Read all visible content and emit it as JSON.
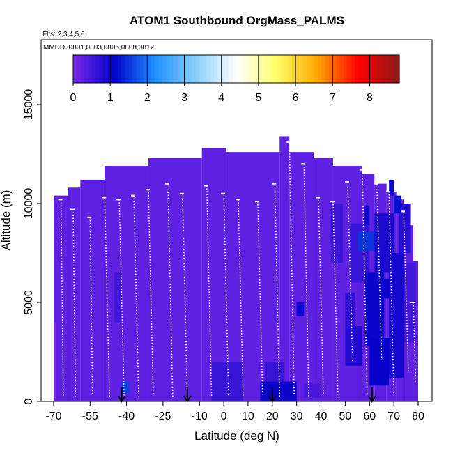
{
  "chart_data": {
    "type": "heatmap",
    "title": "ATOM1 Southbound OrgMass_PALMS",
    "subtitle_flights": "Flts: 2,3,4,5,6",
    "subtitle_dates": "MMDD: 0801,0803,0806,0808,0812",
    "xlabel": "Latitude (deg N)",
    "ylabel": "Altitude (m)",
    "xlim": [
      -70,
      80
    ],
    "ylim": [
      0,
      17500
    ],
    "x_ticks": [
      -70,
      -55,
      -40,
      -25,
      -10,
      0,
      10,
      20,
      30,
      40,
      50,
      60,
      70,
      80
    ],
    "x_tick_labels": [
      "-70",
      "-55",
      "-40",
      "-25",
      "-10",
      "0",
      "10",
      "20",
      "30",
      "40",
      "50",
      "60",
      "70",
      "80"
    ],
    "y_ticks": [
      0,
      5000,
      10000,
      15000
    ],
    "y_tick_labels": [
      "0",
      "5000",
      "10000",
      "15000"
    ],
    "colorbar": {
      "range": [
        0,
        8.8
      ],
      "ticks": [
        0,
        1,
        2,
        3,
        4,
        5,
        6,
        7,
        8
      ],
      "tick_labels": [
        "0",
        "1",
        "2",
        "3",
        "4",
        "5",
        "6",
        "7",
        "8"
      ],
      "colors": [
        "#7B2BE8",
        "#0000C8",
        "#1E90FF",
        "#87CEFA",
        "#FFFFFF",
        "#FFFF66",
        "#FFA500",
        "#FF0000",
        "#8B1A1A"
      ]
    },
    "dominant_value": 0.25,
    "arrow_latitudes": [
      -42,
      -15,
      20,
      61
    ],
    "top_boundary": [
      {
        "lat_min": -70,
        "lat_max": -64,
        "top": 10400
      },
      {
        "lat_min": -64,
        "lat_max": -59,
        "top": 10800
      },
      {
        "lat_min": -59,
        "lat_max": -49,
        "top": 11200
      },
      {
        "lat_min": -49,
        "lat_max": -31,
        "top": 11900
      },
      {
        "lat_min": -31,
        "lat_max": -9,
        "top": 12300
      },
      {
        "lat_min": -9,
        "lat_max": 1,
        "top": 12800
      },
      {
        "lat_min": 1,
        "lat_max": 23,
        "top": 12600
      },
      {
        "lat_min": 23,
        "lat_max": 27,
        "top": 13400
      },
      {
        "lat_min": 27,
        "lat_max": 37,
        "top": 12600
      },
      {
        "lat_min": 37,
        "lat_max": 45,
        "top": 12300
      },
      {
        "lat_min": 45,
        "lat_max": 57,
        "top": 11900
      },
      {
        "lat_min": 57,
        "lat_max": 62,
        "top": 11500
      },
      {
        "lat_min": 62,
        "lat_max": 67,
        "top": 11000
      },
      {
        "lat_min": 67,
        "lat_max": 71,
        "top": 10600
      },
      {
        "lat_min": 71,
        "lat_max": 74,
        "top": 10200
      },
      {
        "lat_min": 74,
        "lat_max": 78,
        "top": 8900
      },
      {
        "lat_min": 78,
        "lat_max": 80,
        "top": 7100
      }
    ],
    "cells": [
      {
        "lat_min": -70,
        "lat_max": -69,
        "alt_min": 0,
        "alt_max": 4000,
        "value": 0.0
      },
      {
        "lat_min": -45,
        "lat_max": -42,
        "alt_min": 4000,
        "alt_max": 6500,
        "value": 0.5
      },
      {
        "lat_min": -42,
        "lat_max": -39,
        "alt_min": 400,
        "alt_max": 1000,
        "value": 1.6
      },
      {
        "lat_min": -5,
        "lat_max": 8,
        "alt_min": 0,
        "alt_max": 2000,
        "value": 0.6
      },
      {
        "lat_min": 15,
        "lat_max": 30,
        "alt_min": 0,
        "alt_max": 1000,
        "value": 1.0
      },
      {
        "lat_min": 17,
        "lat_max": 25,
        "alt_min": 1000,
        "alt_max": 2000,
        "value": 0.6
      },
      {
        "lat_min": 30,
        "lat_max": 33,
        "alt_min": 4300,
        "alt_max": 5000,
        "value": 1.0
      },
      {
        "lat_min": 44,
        "lat_max": 49,
        "alt_min": 7000,
        "alt_max": 10000,
        "value": 0.55
      },
      {
        "lat_min": 50,
        "lat_max": 57,
        "alt_min": 1800,
        "alt_max": 3800,
        "value": 0.8
      },
      {
        "lat_min": 50,
        "lat_max": 54,
        "alt_min": 3800,
        "alt_max": 5500,
        "value": 0.7
      },
      {
        "lat_min": 52,
        "lat_max": 60,
        "alt_min": 6000,
        "alt_max": 9000,
        "value": 0.6
      },
      {
        "lat_min": 55,
        "lat_max": 62,
        "alt_min": 7600,
        "alt_max": 8600,
        "value": 1.5
      },
      {
        "lat_min": 62,
        "lat_max": 68,
        "alt_min": 5200,
        "alt_max": 6200,
        "value": 1.0
      },
      {
        "lat_min": 58,
        "lat_max": 66,
        "alt_min": 2800,
        "alt_max": 6500,
        "value": 1.0
      },
      {
        "lat_min": 60,
        "lat_max": 68,
        "alt_min": 800,
        "alt_max": 3200,
        "value": 1.05
      },
      {
        "lat_min": 62,
        "lat_max": 70,
        "alt_min": 6500,
        "alt_max": 9500,
        "value": 0.85
      },
      {
        "lat_min": 68,
        "lat_max": 74,
        "alt_min": 1200,
        "alt_max": 7500,
        "value": 0.9
      },
      {
        "lat_min": 72,
        "lat_max": 77,
        "alt_min": 7500,
        "alt_max": 10000,
        "value": 0.75
      },
      {
        "lat_min": 70,
        "lat_max": 73,
        "alt_min": 9500,
        "alt_max": 10400,
        "value": 1.2
      },
      {
        "lat_min": 68,
        "lat_max": 70,
        "alt_min": 10400,
        "alt_max": 11200,
        "value": 1.0
      },
      {
        "lat_min": 74,
        "lat_max": 79,
        "alt_min": 3000,
        "alt_max": 7000,
        "value": 0.5
      },
      {
        "lat_min": 58,
        "lat_max": 60,
        "alt_min": 8900,
        "alt_max": 9900,
        "value": 1.0
      },
      {
        "lat_min": 33,
        "lat_max": 40,
        "alt_min": 200,
        "alt_max": 900,
        "value": 0.45
      }
    ],
    "profiles": [
      {
        "lat_start": -67,
        "lat_end": -66,
        "alt_start": 10200,
        "alt_end": 200
      },
      {
        "lat_start": -62,
        "lat_end": -61,
        "alt_start": 9700,
        "alt_end": 200
      },
      {
        "lat_start": -55,
        "lat_end": -54,
        "alt_start": 9300,
        "alt_end": 300
      },
      {
        "lat_start": -49,
        "lat_end": -47,
        "alt_start": 10300,
        "alt_end": 200
      },
      {
        "lat_start": -43,
        "lat_end": -41,
        "alt_start": 10200,
        "alt_end": 300
      },
      {
        "lat_start": -37,
        "lat_end": -35,
        "alt_start": 10400,
        "alt_end": 200
      },
      {
        "lat_start": -31,
        "lat_end": -29,
        "alt_start": 10700,
        "alt_end": 300
      },
      {
        "lat_start": -23,
        "lat_end": -21,
        "alt_start": 11000,
        "alt_end": 200
      },
      {
        "lat_start": -17,
        "lat_end": -15,
        "alt_start": 10500,
        "alt_end": 300
      },
      {
        "lat_start": -7,
        "lat_end": -5,
        "alt_start": 10900,
        "alt_end": 200
      },
      {
        "lat_start": 0,
        "lat_end": 2,
        "alt_start": 10500,
        "alt_end": 300
      },
      {
        "lat_start": 6,
        "lat_end": 8,
        "alt_start": 10200,
        "alt_end": 200
      },
      {
        "lat_start": 14,
        "lat_end": 16,
        "alt_start": 10100,
        "alt_end": 300
      },
      {
        "lat_start": 21,
        "lat_end": 23,
        "alt_start": 11000,
        "alt_end": 200
      },
      {
        "lat_start": 27,
        "lat_end": 29,
        "alt_start": 13100,
        "alt_end": 300
      },
      {
        "lat_start": 33,
        "lat_end": 35,
        "alt_start": 12000,
        "alt_end": 200
      },
      {
        "lat_start": 39,
        "lat_end": 41,
        "alt_start": 10300,
        "alt_end": 300
      },
      {
        "lat_start": 45,
        "lat_end": 47,
        "alt_start": 10100,
        "alt_end": 200
      },
      {
        "lat_start": 51,
        "lat_end": 53,
        "alt_start": 11100,
        "alt_end": 2000
      },
      {
        "lat_start": 57,
        "lat_end": 59,
        "alt_start": 11700,
        "alt_end": 300
      },
      {
        "lat_start": 63,
        "lat_end": 65,
        "alt_start": 11000,
        "alt_end": 2000
      },
      {
        "lat_start": 68,
        "lat_end": 70,
        "alt_start": 10600,
        "alt_end": 300
      },
      {
        "lat_start": 74,
        "lat_end": 76,
        "alt_start": 9600,
        "alt_end": 1500
      },
      {
        "lat_start": 78,
        "lat_end": 79,
        "alt_start": 5000,
        "alt_end": 1000
      }
    ]
  }
}
